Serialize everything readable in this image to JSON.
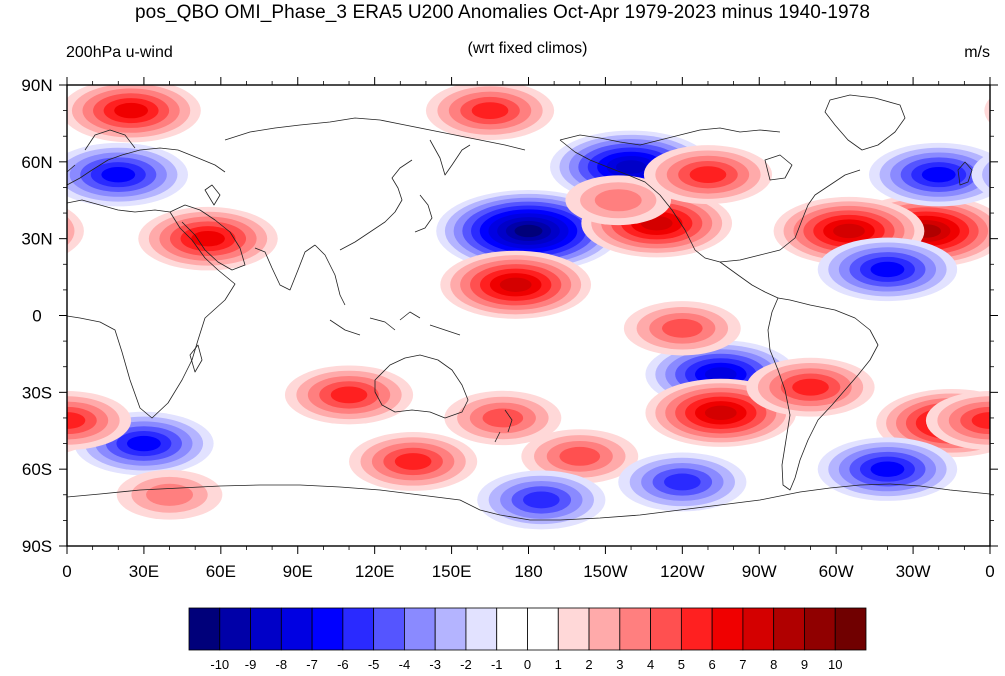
{
  "title": "pos_QBO OMI_Phase_3 ERA5 U200 Anomalies Oct-Apr 1979-2023 minus 1940-1978",
  "subtitle_left": "200hPa u-wind",
  "subtitle_center": "(wrt fixed climos)",
  "subtitle_right": "m/s",
  "x_ticks": [
    "0",
    "30E",
    "60E",
    "90E",
    "120E",
    "150E",
    "180",
    "150W",
    "120W",
    "90W",
    "60W",
    "30W",
    "0"
  ],
  "y_ticks": [
    "90N",
    "60N",
    "30N",
    "0",
    "30S",
    "60S",
    "90S"
  ],
  "colorbar": {
    "labels": [
      "-10",
      "-9",
      "-8",
      "-7",
      "-6",
      "-5",
      "-4",
      "-3",
      "-2",
      "-1",
      "0",
      "1",
      "2",
      "3",
      "4",
      "5",
      "6",
      "7",
      "8",
      "9",
      "10"
    ],
    "colors": [
      "#00007a",
      "#0000a8",
      "#0000c8",
      "#0000e2",
      "#0000ff",
      "#2a2aff",
      "#5555ff",
      "#8a8aff",
      "#b4b4ff",
      "#e2e2ff",
      "#ffffff",
      "#ffffff",
      "#ffd8d8",
      "#ffaaaa",
      "#ff7f7f",
      "#ff5050",
      "#ff2020",
      "#f00000",
      "#d40000",
      "#b00000",
      "#900000",
      "#700000"
    ]
  },
  "chart_data": {
    "type": "heatmap",
    "title": "pos_QBO OMI_Phase_3 ERA5 U200 Anomalies Oct-Apr 1979-2023 minus 1940-1978",
    "units": "m/s",
    "xlim": [
      0,
      360
    ],
    "ylim": [
      -90,
      90
    ],
    "levels": [
      -10,
      -9,
      -8,
      -7,
      -6,
      -5,
      -4,
      -3,
      -2,
      -1,
      0,
      1,
      2,
      3,
      4,
      5,
      6,
      7,
      8,
      9,
      10
    ],
    "anomaly_centers": [
      {
        "lon": 180,
        "lat": 33,
        "value": -10
      },
      {
        "lon": 175,
        "lat": 12,
        "value": 7
      },
      {
        "lon": 230,
        "lat": 36,
        "value": 7
      },
      {
        "lon": 220,
        "lat": 58,
        "value": -8
      },
      {
        "lon": 250,
        "lat": 55,
        "value": 5
      },
      {
        "lon": 165,
        "lat": 80,
        "value": 5
      },
      {
        "lon": 25,
        "lat": 80,
        "value": 6
      },
      {
        "lon": 335,
        "lat": 33,
        "value": 8
      },
      {
        "lon": 305,
        "lat": 33,
        "value": 7
      },
      {
        "lon": 320,
        "lat": 18,
        "value": -6
      },
      {
        "lon": 340,
        "lat": 55,
        "value": -6
      },
      {
        "lon": 20,
        "lat": 55,
        "value": -6
      },
      {
        "lon": 55,
        "lat": 30,
        "value": 6
      },
      {
        "lon": 255,
        "lat": -23,
        "value": -7
      },
      {
        "lon": 255,
        "lat": -38,
        "value": 7
      },
      {
        "lon": 345,
        "lat": -42,
        "value": 7
      },
      {
        "lon": 290,
        "lat": -28,
        "value": 5
      },
      {
        "lon": 30,
        "lat": -50,
        "value": -6
      },
      {
        "lon": 320,
        "lat": -60,
        "value": -6
      },
      {
        "lon": 110,
        "lat": -31,
        "value": 5
      },
      {
        "lon": 0,
        "lat": -41,
        "value": 5
      },
      {
        "lon": 135,
        "lat": -57,
        "value": 5
      },
      {
        "lon": 200,
        "lat": -55,
        "value": 4
      },
      {
        "lon": 240,
        "lat": -65,
        "value": -5
      },
      {
        "lon": 185,
        "lat": -72,
        "value": -5
      },
      {
        "lon": 240,
        "lat": -5,
        "value": 4
      },
      {
        "lon": 170,
        "lat": -40,
        "value": 4
      },
      {
        "lon": 40,
        "lat": -70,
        "value": 3
      },
      {
        "lon": 215,
        "lat": 45,
        "value": 3
      }
    ]
  }
}
